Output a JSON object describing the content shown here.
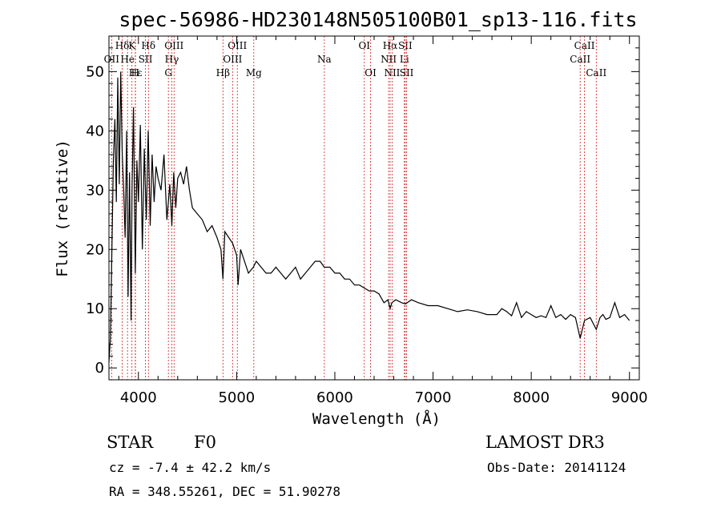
{
  "chart_data": {
    "type": "line",
    "title": "spec-56986-HD230148N505100B01_sp13-116.fits",
    "xlabel": "Wavelength (Å)",
    "ylabel": "Flux (relative)",
    "xlim": [
      3700,
      9100
    ],
    "ylim": [
      -2,
      56
    ],
    "xticks": [
      4000,
      5000,
      6000,
      7000,
      8000,
      9000
    ],
    "yticks": [
      0,
      10,
      20,
      30,
      40,
      50
    ],
    "series": [
      {
        "name": "flux",
        "x": [
          3700,
          3715,
          3730,
          3745,
          3760,
          3775,
          3790,
          3805,
          3820,
          3835,
          3850,
          3865,
          3880,
          3895,
          3910,
          3925,
          3935,
          3950,
          3968,
          3985,
          4000,
          4020,
          4040,
          4060,
          4080,
          4100,
          4120,
          4140,
          4160,
          4180,
          4200,
          4230,
          4260,
          4290,
          4320,
          4340,
          4360,
          4380,
          4400,
          4430,
          4460,
          4490,
          4520,
          4550,
          4600,
          4650,
          4700,
          4750,
          4800,
          4840,
          4861,
          4880,
          4920,
          4960,
          5000,
          5015,
          5040,
          5080,
          5120,
          5170,
          5200,
          5250,
          5300,
          5350,
          5400,
          5450,
          5500,
          5550,
          5600,
          5650,
          5700,
          5750,
          5800,
          5850,
          5893,
          5950,
          6000,
          6050,
          6100,
          6150,
          6200,
          6250,
          6300,
          6350,
          6400,
          6450,
          6500,
          6540,
          6563,
          6580,
          6620,
          6680,
          6720,
          6780,
          6850,
          6950,
          7050,
          7150,
          7250,
          7350,
          7450,
          7550,
          7650,
          7700,
          7750,
          7800,
          7850,
          7900,
          7950,
          8000,
          8050,
          8100,
          8150,
          8200,
          8250,
          8300,
          8350,
          8400,
          8450,
          8498,
          8542,
          8600,
          8662,
          8700,
          8730,
          8760,
          8800,
          8850,
          8900,
          8950,
          9000
        ],
        "values": [
          1,
          5,
          20,
          35,
          42,
          28,
          49,
          31,
          50,
          36,
          30,
          22,
          40,
          12,
          33,
          8,
          30,
          44,
          16,
          35,
          28,
          41,
          20,
          37,
          25,
          40,
          24,
          36,
          28,
          34,
          32,
          30,
          36,
          25,
          31,
          24,
          33,
          27,
          32,
          33,
          31,
          34,
          30,
          27,
          26,
          25,
          23,
          24,
          22,
          20,
          15,
          23,
          22,
          21,
          19,
          14,
          20,
          18,
          16,
          17,
          18,
          17,
          16,
          16,
          17,
          16,
          15,
          16,
          17,
          15,
          16,
          17,
          18,
          18,
          17,
          17,
          16,
          16,
          15,
          15,
          14,
          14,
          13.5,
          13,
          13,
          12.5,
          11,
          11.5,
          10,
          11,
          11.5,
          11,
          10.8,
          11.5,
          11,
          10.5,
          10.5,
          10,
          9.5,
          9.8,
          9.5,
          9,
          9,
          10,
          9.5,
          8.8,
          11,
          8.5,
          9.5,
          9,
          8.5,
          8.8,
          8.5,
          10.5,
          8.5,
          9,
          8.2,
          9,
          8.5,
          5,
          8,
          8.5,
          6.5,
          8.5,
          9,
          8.2,
          8.5,
          11,
          8.5,
          9,
          8
        ]
      }
    ],
    "spectral_lines": [
      {
        "label": "Hδ",
        "wavelength": 3835,
        "row": 0
      },
      {
        "label": "K",
        "wavelength": 3934,
        "row": 0
      },
      {
        "label": "Hδ",
        "wavelength": 4102,
        "row": 0
      },
      {
        "label": "OIII",
        "wavelength": 4363,
        "row": 0
      },
      {
        "label": "OIII",
        "wavelength": 5007,
        "row": 0
      },
      {
        "label": "OI",
        "wavelength": 6300,
        "row": 0
      },
      {
        "label": "Hα",
        "wavelength": 6563,
        "row": 0
      },
      {
        "label": "SII",
        "wavelength": 6717,
        "row": 0
      },
      {
        "label": "CaII",
        "wavelength": 8542,
        "row": 0
      },
      {
        "label": "OII",
        "wavelength": 3727,
        "row": 1
      },
      {
        "label": "He",
        "wavelength": 3889,
        "row": 1
      },
      {
        "label": "SII",
        "wavelength": 4072,
        "row": 1
      },
      {
        "label": "Hγ",
        "wavelength": 4340,
        "row": 1
      },
      {
        "label": "OIII",
        "wavelength": 4959,
        "row": 1
      },
      {
        "label": "Na",
        "wavelength": 5893,
        "row": 1
      },
      {
        "label": "NII",
        "wavelength": 6548,
        "row": 1
      },
      {
        "label": "Li",
        "wavelength": 6708,
        "row": 1
      },
      {
        "label": "CaII",
        "wavelength": 8498,
        "row": 1
      },
      {
        "label": "Hε",
        "wavelength": 3970,
        "row": 2
      },
      {
        "label": "H",
        "wavelength": 3968,
        "row": 2
      },
      {
        "label": "G",
        "wavelength": 4305,
        "row": 2
      },
      {
        "label": "Hβ",
        "wavelength": 4861,
        "row": 2
      },
      {
        "label": "Mg",
        "wavelength": 5175,
        "row": 2
      },
      {
        "label": "OI",
        "wavelength": 6364,
        "row": 2
      },
      {
        "label": "NII",
        "wavelength": 6583,
        "row": 2
      },
      {
        "label": "SII",
        "wavelength": 6731,
        "row": 2
      },
      {
        "label": "CaII",
        "wavelength": 8662,
        "row": 2
      }
    ]
  },
  "info": {
    "object_class": "STAR",
    "subclass": "F0",
    "survey": "LAMOST DR3",
    "redshift_text": "cz = -7.4 ± 42.2 km/s",
    "obs_date": "Obs-Date: 20141124",
    "coords_text": "RA = 348.55261, DEC =  51.90278"
  },
  "colors": {
    "spectrum": "#000000",
    "line_markers": "#cc2222",
    "frame": "#000000"
  }
}
